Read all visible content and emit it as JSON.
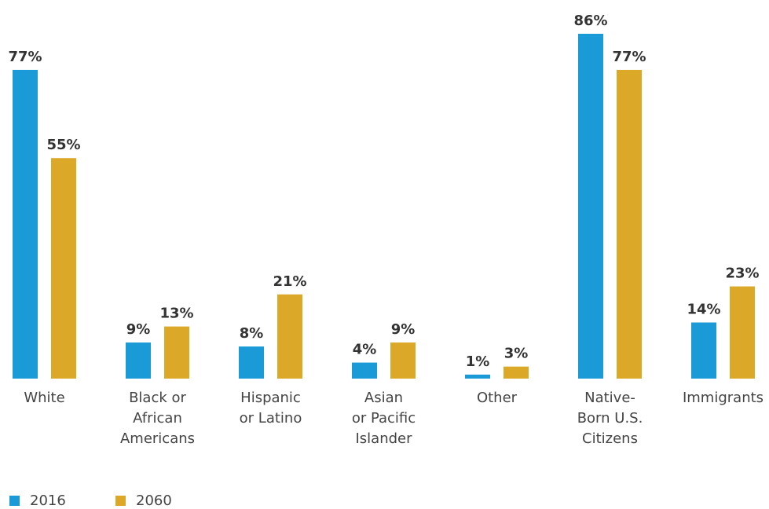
{
  "chart_data": {
    "type": "bar",
    "categories": [
      "White",
      "Black or\nAfrican\nAmericans",
      "Hispanic\nor Latino",
      "Asian\nor Pacific\nIslander",
      "Other",
      "Native-\nBorn U.S.\nCitizens",
      "Immigrants"
    ],
    "series": [
      {
        "name": "2016",
        "color": "#1a9ad6",
        "values": [
          77,
          9,
          8,
          4,
          1,
          86,
          14
        ],
        "value_labels": [
          "77%",
          "9%",
          "8%",
          "4%",
          "1%",
          "86%",
          "14%"
        ]
      },
      {
        "name": "2060",
        "color": "#dba927",
        "values": [
          55,
          13,
          21,
          9,
          3,
          77,
          23
        ],
        "value_labels": [
          "55%",
          "13%",
          "21%",
          "9%",
          "3%",
          "77%",
          "23%"
        ]
      }
    ],
    "legend": "bottom-left"
  }
}
